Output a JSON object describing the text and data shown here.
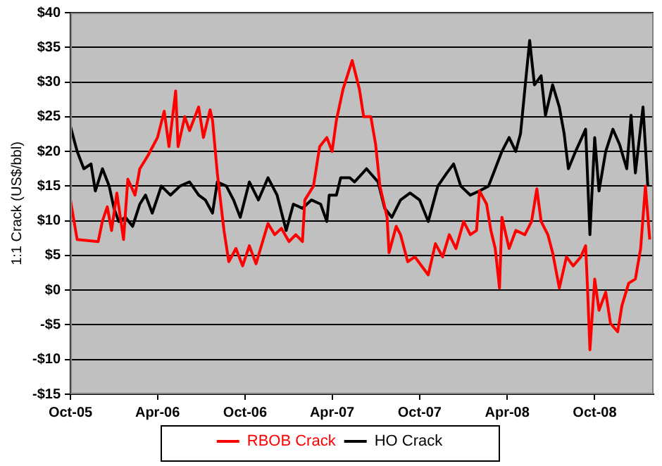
{
  "chart_data": {
    "type": "line",
    "ylabel": "1:1 Crack (US$/bbl)",
    "xlim": [
      "2005-10-01",
      "2009-02-01"
    ],
    "xticks": [
      {
        "value": "2005-10-01",
        "label": "Oct-05"
      },
      {
        "value": "2006-04-01",
        "label": "Apr-06"
      },
      {
        "value": "2006-10-01",
        "label": "Oct-06"
      },
      {
        "value": "2007-04-01",
        "label": "Apr-07"
      },
      {
        "value": "2007-10-01",
        "label": "Oct-07"
      },
      {
        "value": "2008-04-01",
        "label": "Apr-08"
      },
      {
        "value": "2008-10-01",
        "label": "Oct-08"
      }
    ],
    "ylim": [
      -15,
      40
    ],
    "yticks": [
      {
        "value": -15,
        "label": "-$15"
      },
      {
        "value": -10,
        "label": "-$10"
      },
      {
        "value": -5,
        "label": "-$5"
      },
      {
        "value": 0,
        "label": "$0"
      },
      {
        "value": 5,
        "label": "$5"
      },
      {
        "value": 10,
        "label": "$10"
      },
      {
        "value": 15,
        "label": "$15"
      },
      {
        "value": 20,
        "label": "$20"
      },
      {
        "value": 25,
        "label": "$25"
      },
      {
        "value": 30,
        "label": "$30"
      },
      {
        "value": 35,
        "label": "$35"
      },
      {
        "value": 40,
        "label": "$40"
      }
    ],
    "grid": "y",
    "legend": "bottom",
    "marker": "none",
    "line_style": "solid",
    "series": [
      {
        "name": "RBOB Crack",
        "color": "#ff0000",
        "x": [
          "2005-10-01",
          "2005-10-15",
          "2005-11-28",
          "2005-12-07",
          "2005-12-17",
          "2005-12-26",
          "2006-01-06",
          "2006-01-20",
          "2006-01-29",
          "2006-02-13",
          "2006-02-23",
          "2006-03-12",
          "2006-04-01",
          "2006-04-15",
          "2006-04-25",
          "2006-05-09",
          "2006-05-14",
          "2006-05-28",
          "2006-06-07",
          "2006-06-26",
          "2006-07-06",
          "2006-07-20",
          "2006-07-25",
          "2006-08-04",
          "2006-08-18",
          "2006-08-28",
          "2006-09-12",
          "2006-09-26",
          "2006-10-10",
          "2006-10-24",
          "2006-11-08",
          "2006-11-18",
          "2006-12-02",
          "2006-12-16",
          "2007-01-01",
          "2007-01-15",
          "2007-01-29",
          "2007-02-03",
          "2007-02-21",
          "2007-03-06",
          "2007-03-21",
          "2007-04-01",
          "2007-04-10",
          "2007-04-24",
          "2007-05-13",
          "2007-05-28",
          "2007-06-06",
          "2007-06-21",
          "2007-07-01",
          "2007-07-10",
          "2007-07-25",
          "2007-07-29",
          "2007-08-13",
          "2007-08-22",
          "2007-09-06",
          "2007-09-21",
          "2007-10-05",
          "2007-10-19",
          "2007-11-03",
          "2007-11-18",
          "2007-12-02",
          "2007-12-16",
          "2008-01-01",
          "2008-01-15",
          "2008-01-28",
          "2008-02-03",
          "2008-02-18",
          "2008-02-27",
          "2008-03-07",
          "2008-03-16",
          "2008-03-21",
          "2008-04-05",
          "2008-04-19",
          "2008-05-08",
          "2008-05-22",
          "2008-06-02",
          "2008-06-11",
          "2008-06-25",
          "2008-07-05",
          "2008-07-19",
          "2008-08-03",
          "2008-08-17",
          "2008-09-02",
          "2008-09-12",
          "2008-09-16",
          "2008-09-21",
          "2008-10-01",
          "2008-10-10",
          "2008-10-24",
          "2008-11-03",
          "2008-11-18",
          "2008-11-27",
          "2008-12-11",
          "2008-12-25",
          "2009-01-05",
          "2009-01-15",
          "2009-01-24"
        ],
        "values": [
          13,
          7.3,
          7,
          10,
          12,
          8.6,
          14,
          7.3,
          16,
          13.7,
          17.5,
          19.4,
          22,
          25.8,
          20.7,
          28.7,
          20.7,
          25,
          23,
          26.4,
          22,
          26,
          24.5,
          16.9,
          8.6,
          4.1,
          6,
          3.5,
          6.4,
          3.8,
          7.3,
          9.6,
          8,
          8.9,
          7,
          8,
          7,
          13,
          15,
          20.7,
          22,
          20,
          24.5,
          29,
          33.1,
          29,
          25,
          25,
          21,
          15,
          10.5,
          5.4,
          9.2,
          8,
          4.1,
          4.8,
          3.5,
          2.2,
          6.7,
          4.8,
          8,
          6,
          9.9,
          8,
          8.6,
          14.3,
          12.4,
          8.6,
          6,
          0.3,
          10.5,
          6,
          8.6,
          8,
          9.9,
          14.6,
          9.9,
          8,
          5.4,
          0.3,
          4.8,
          3.5,
          4.8,
          6.4,
          0.3,
          -8.6,
          1.6,
          -2.9,
          -0.3,
          -4.8,
          -6,
          -2.2,
          1,
          1.6,
          6,
          15,
          7.3
        ]
      },
      {
        "name": "HO Crack",
        "color": "#000000",
        "x": [
          "2005-10-01",
          "2005-10-15",
          "2005-10-29",
          "2005-11-13",
          "2005-11-22",
          "2005-12-07",
          "2005-12-21",
          "2005-12-31",
          "2006-01-10",
          "2006-01-24",
          "2006-02-08",
          "2006-02-23",
          "2006-03-07",
          "2006-03-21",
          "2006-04-09",
          "2006-04-28",
          "2006-05-18",
          "2006-06-07",
          "2006-06-26",
          "2006-07-10",
          "2006-07-25",
          "2006-08-04",
          "2006-08-23",
          "2006-09-07",
          "2006-09-21",
          "2006-10-10",
          "2006-10-29",
          "2006-11-18",
          "2006-12-07",
          "2006-12-26",
          "2007-01-10",
          "2007-01-29",
          "2007-02-17",
          "2007-03-08",
          "2007-03-21",
          "2007-03-26",
          "2007-04-10",
          "2007-04-19",
          "2007-05-08",
          "2007-05-18",
          "2007-06-12",
          "2007-07-06",
          "2007-07-20",
          "2007-08-04",
          "2007-08-22",
          "2007-09-11",
          "2007-10-01",
          "2007-10-19",
          "2007-11-08",
          "2007-11-27",
          "2007-12-11",
          "2007-12-26",
          "2008-01-15",
          "2008-02-03",
          "2008-02-22",
          "2008-03-07",
          "2008-03-21",
          "2008-04-05",
          "2008-04-19",
          "2008-04-29",
          "2008-05-08",
          "2008-05-18",
          "2008-05-28",
          "2008-06-11",
          "2008-06-20",
          "2008-07-05",
          "2008-07-19",
          "2008-07-29",
          "2008-08-07",
          "2008-08-22",
          "2008-09-12",
          "2008-09-21",
          "2008-10-01",
          "2008-10-10",
          "2008-10-24",
          "2008-11-08",
          "2008-11-22",
          "2008-12-07",
          "2008-12-16",
          "2008-12-25",
          "2009-01-10",
          "2009-01-20"
        ],
        "values": [
          23.6,
          20,
          17.5,
          18.2,
          14.3,
          17.5,
          15,
          11.8,
          9.9,
          10.5,
          9.2,
          12.4,
          13.7,
          11.1,
          15,
          13.7,
          15,
          15.6,
          13.7,
          13,
          11.1,
          15.6,
          15,
          13,
          10.5,
          15.6,
          13,
          16.2,
          13.7,
          8.6,
          12.4,
          11.8,
          13,
          12.4,
          9.9,
          13.7,
          13.7,
          16.2,
          16.2,
          15.6,
          17.5,
          15.6,
          11.8,
          10.5,
          13,
          14,
          13,
          9.9,
          15,
          16.9,
          18.2,
          15,
          13.7,
          14.3,
          15,
          17.5,
          20,
          22,
          20,
          22.6,
          29,
          36,
          29.6,
          30.9,
          25.2,
          29.6,
          26.4,
          22.6,
          17.5,
          20,
          23.2,
          8,
          22,
          14.3,
          20,
          23.2,
          21,
          17.5,
          25.2,
          16.9,
          26.4,
          15
        ]
      }
    ]
  }
}
